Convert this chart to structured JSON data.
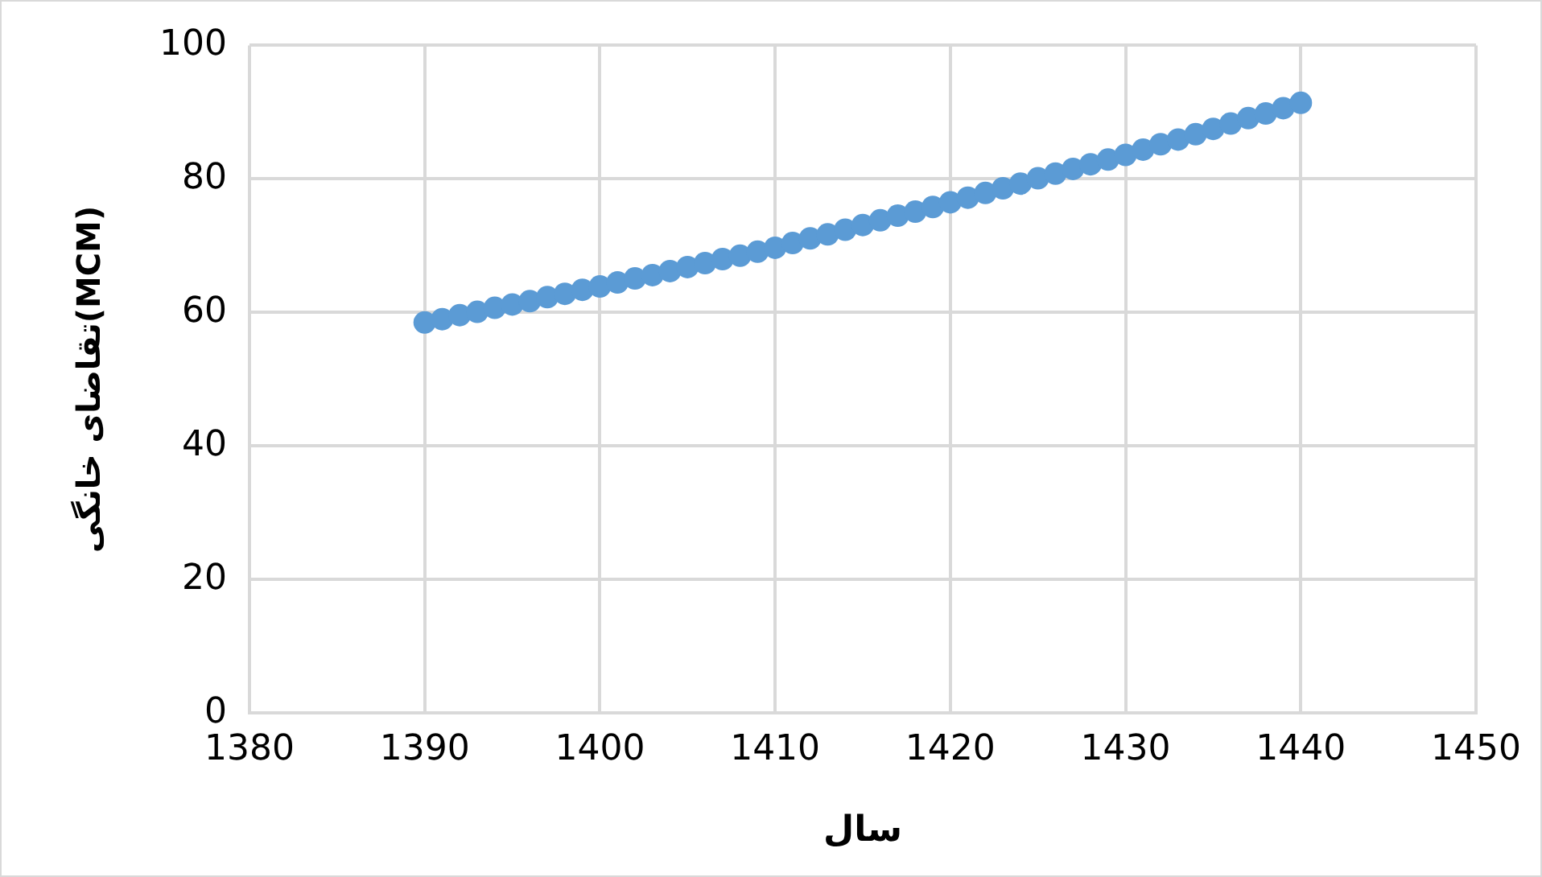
{
  "chart_data": {
    "type": "scatter",
    "xlabel": "سال",
    "ylabel": "تقاضای خانگی(MCM)",
    "x": [
      1390,
      1391,
      1392,
      1393,
      1394,
      1395,
      1396,
      1397,
      1398,
      1399,
      1400,
      1401,
      1402,
      1403,
      1404,
      1405,
      1406,
      1407,
      1408,
      1409,
      1410,
      1411,
      1412,
      1413,
      1414,
      1415,
      1416,
      1417,
      1418,
      1419,
      1420,
      1421,
      1422,
      1423,
      1424,
      1425,
      1426,
      1427,
      1428,
      1429,
      1430,
      1431,
      1432,
      1433,
      1434,
      1435,
      1436,
      1437,
      1438,
      1439,
      1440
    ],
    "series": [
      {
        "color": "#5b9bd5",
        "values": [
          58.5,
          59.0,
          59.6,
          60.1,
          60.7,
          61.2,
          61.7,
          62.3,
          62.8,
          63.4,
          63.9,
          64.5,
          65.1,
          65.6,
          66.2,
          66.8,
          67.4,
          68.0,
          68.5,
          69.1,
          69.7,
          70.4,
          71.1,
          71.7,
          72.4,
          73.1,
          73.8,
          74.5,
          75.1,
          75.8,
          76.5,
          77.2,
          77.9,
          78.6,
          79.3,
          80.1,
          80.8,
          81.5,
          82.2,
          82.9,
          83.6,
          84.4,
          85.2,
          85.9,
          86.7,
          87.5,
          88.3,
          89.1,
          89.8,
          90.6,
          91.4
        ]
      }
    ],
    "xlim": [
      1380,
      1450
    ],
    "xticks": [
      1380,
      1390,
      1400,
      1410,
      1420,
      1430,
      1440,
      1450
    ],
    "ylim": [
      0,
      100
    ],
    "yticks": [
      0,
      20,
      40,
      60,
      80,
      100
    ],
    "grid": true,
    "legend": false,
    "marker": "circle"
  }
}
